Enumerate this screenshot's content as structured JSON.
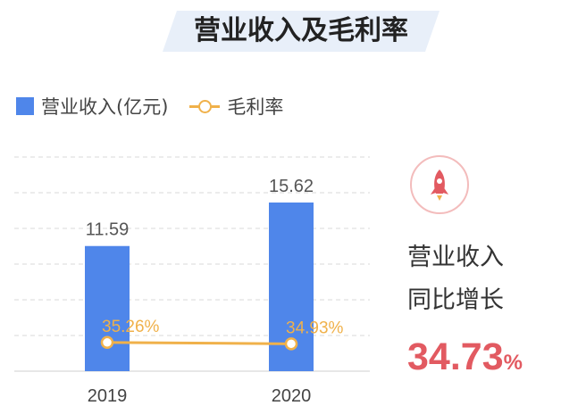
{
  "chart_data": {
    "type": "bar",
    "title": "营业收入及毛利率",
    "categories": [
      "2019",
      "2020"
    ],
    "series": [
      {
        "name": "营业收入(亿元)",
        "type": "bar",
        "values": [
          11.59,
          15.62
        ],
        "value_labels": [
          "11.59",
          "15.62"
        ],
        "color": "#4f86ea"
      },
      {
        "name": "毛利率",
        "type": "line",
        "values": [
          35.26,
          34.93
        ],
        "value_labels": [
          "35.26%",
          "34.93%"
        ],
        "color": "#f0b14a"
      }
    ],
    "grid": true,
    "legend_position": "top-left"
  },
  "kpi": {
    "icon": "rocket-icon",
    "line1": "营业收入",
    "line2": "同比增长",
    "value": "34.73",
    "unit": "%",
    "value_color": "#e25a61"
  }
}
